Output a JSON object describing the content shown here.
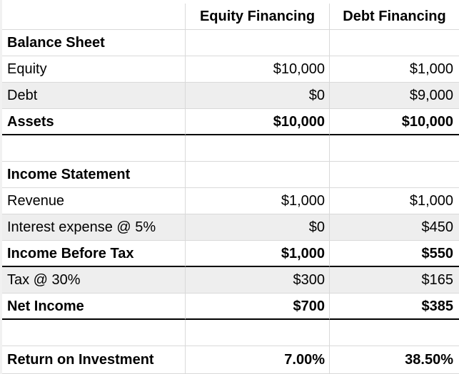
{
  "header": {
    "col1": "Equity Financing",
    "col2": "Debt Financing"
  },
  "rows": [
    {
      "label": "",
      "equity": "",
      "debt": ""
    },
    {
      "label": "Balance Sheet",
      "equity": "",
      "debt": ""
    },
    {
      "label": "Equity",
      "equity": "$10,000",
      "debt": "$1,000"
    },
    {
      "label": "Debt",
      "equity": "$0",
      "debt": "$9,000"
    },
    {
      "label": "Assets",
      "equity": "$10,000",
      "debt": "$10,000"
    },
    {
      "label": "",
      "equity": "",
      "debt": ""
    },
    {
      "label": "Income Statement",
      "equity": "",
      "debt": ""
    },
    {
      "label": "Revenue",
      "equity": "$1,000",
      "debt": "$1,000"
    },
    {
      "label": "Interest expense @ 5%",
      "equity": "$0",
      "debt": "$450"
    },
    {
      "label": "Income Before Tax",
      "equity": "$1,000",
      "debt": "$550"
    },
    {
      "label": "Tax @ 30%",
      "equity": "$300",
      "debt": "$165"
    },
    {
      "label": "Net Income",
      "equity": "$700",
      "debt": "$385"
    },
    {
      "label": "",
      "equity": "",
      "debt": ""
    },
    {
      "label": "Return on Investment",
      "equity": "7.00%",
      "debt": "38.50%"
    }
  ]
}
